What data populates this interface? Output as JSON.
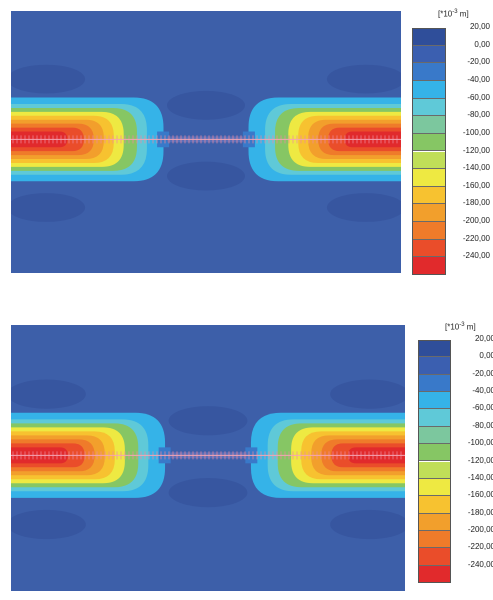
{
  "figure": {
    "unit_prefix": "[*10",
    "unit_exp": "-3",
    "unit_suffix": " m]",
    "legend_values": [
      "20,00",
      "0,00",
      "-20,00",
      "-40,00",
      "-60,00",
      "-80,00",
      "-100,00",
      "-120,00",
      "-140,00",
      "-160,00",
      "-180,00",
      "-200,00",
      "-220,00",
      "-240,00"
    ],
    "legend_colors": [
      "#2f4e9a",
      "#3b5fb0",
      "#3979c9",
      "#35b3e8",
      "#5fc9d8",
      "#7cc79e",
      "#86c664",
      "#c0de58",
      "#eee942",
      "#f7c230",
      "#f29f2c",
      "#ef7b2a",
      "#ea4d2a",
      "#e12a2c"
    ],
    "background_color": "#3d5fa9"
  }
}
